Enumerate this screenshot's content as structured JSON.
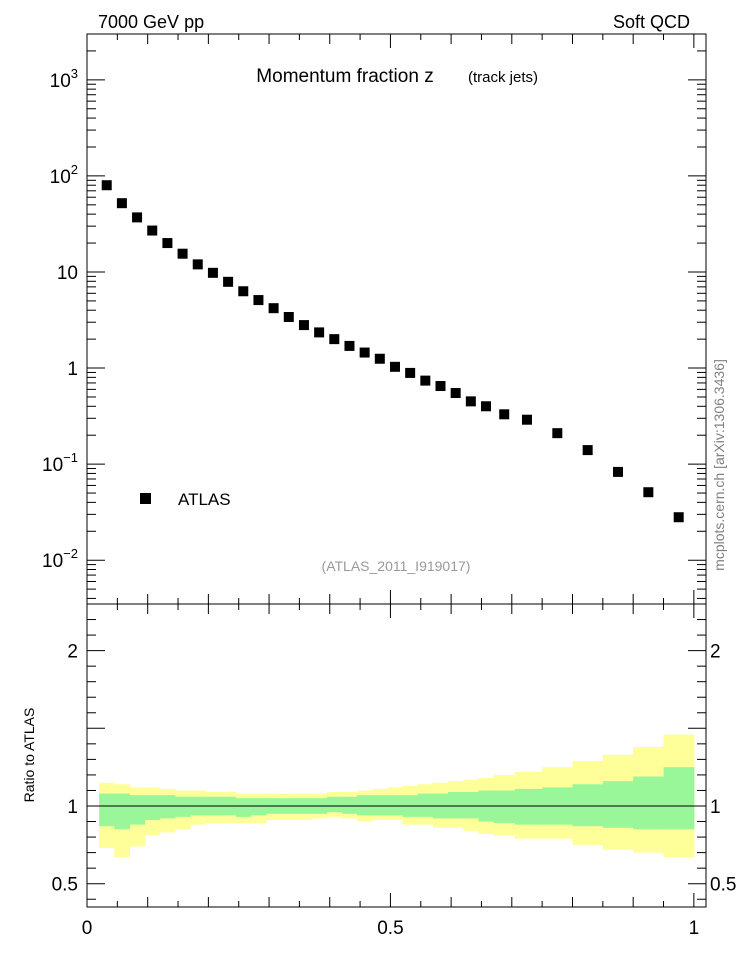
{
  "header": {
    "left": "7000 GeV pp",
    "right": "Soft QCD"
  },
  "side_label": "mcplots.cern.ch [arXiv:1306.3436]",
  "chart_data": [
    {
      "type": "scatter",
      "title": "Momentum fraction z",
      "subtitle": "(track jets)",
      "analysis_id": "(ATLAS_2011_I919017)",
      "y_scale": "log",
      "xlim": [
        0,
        1.02
      ],
      "ylim": [
        0.0035,
        3000
      ],
      "y_tick_labels": [
        {
          "value": 0.01,
          "base": "10",
          "exp": "−2"
        },
        {
          "value": 0.1,
          "base": "10",
          "exp": "−1"
        },
        {
          "value": 1,
          "base": "1",
          "exp": ""
        },
        {
          "value": 10,
          "base": "10",
          "exp": ""
        },
        {
          "value": 100,
          "base": "10",
          "exp": "2"
        },
        {
          "value": 1000,
          "base": "10",
          "exp": "3"
        }
      ],
      "legend": {
        "entry": "ATLAS",
        "placement": "lower-left"
      },
      "series": [
        {
          "name": "ATLAS",
          "color": "#000000",
          "marker": "square",
          "x": [
            0.0325,
            0.0575,
            0.0825,
            0.1075,
            0.1325,
            0.1575,
            0.1825,
            0.2075,
            0.2325,
            0.2575,
            0.2825,
            0.3075,
            0.3325,
            0.3575,
            0.3825,
            0.4075,
            0.4325,
            0.4575,
            0.4825,
            0.5075,
            0.5325,
            0.5575,
            0.5825,
            0.6075,
            0.6325,
            0.6575,
            0.6875,
            0.725,
            0.775,
            0.825,
            0.875,
            0.925,
            0.975
          ],
          "y": [
            80,
            52,
            37,
            27,
            20,
            15.5,
            12,
            9.8,
            7.9,
            6.3,
            5.1,
            4.2,
            3.4,
            2.8,
            2.35,
            2.0,
            1.7,
            1.45,
            1.25,
            1.03,
            0.89,
            0.74,
            0.65,
            0.55,
            0.45,
            0.4,
            0.33,
            0.29,
            0.21,
            0.14,
            0.083,
            0.051,
            0.028
          ]
        }
      ]
    },
    {
      "type": "area",
      "ylabel": "Ratio to ATLAS",
      "xlim": [
        0,
        1.02
      ],
      "ylim": [
        0.35,
        2.3
      ],
      "x_tick_labels": [
        {
          "value": 0,
          "label": "0"
        },
        {
          "value": 0.5,
          "label": "0.5"
        },
        {
          "value": 1,
          "label": "1"
        }
      ],
      "y_tick_labels": [
        {
          "value": 0.5,
          "label": "0.5"
        },
        {
          "value": 1,
          "label": "1"
        },
        {
          "value": 2,
          "label": "2"
        }
      ],
      "reference_line": 1,
      "colors": {
        "inner_band": "#99f799",
        "outer_band": "#ffff99"
      },
      "bin_edges": [
        0.02,
        0.045,
        0.07,
        0.095,
        0.12,
        0.145,
        0.17,
        0.195,
        0.22,
        0.245,
        0.27,
        0.295,
        0.32,
        0.345,
        0.37,
        0.395,
        0.42,
        0.445,
        0.47,
        0.495,
        0.52,
        0.545,
        0.57,
        0.595,
        0.62,
        0.645,
        0.67,
        0.705,
        0.75,
        0.8,
        0.85,
        0.9,
        0.95,
        1.0
      ],
      "inner_band_upper": [
        1.08,
        1.08,
        1.07,
        1.07,
        1.07,
        1.06,
        1.06,
        1.06,
        1.06,
        1.05,
        1.05,
        1.05,
        1.05,
        1.05,
        1.05,
        1.06,
        1.06,
        1.07,
        1.07,
        1.07,
        1.07,
        1.08,
        1.08,
        1.09,
        1.09,
        1.1,
        1.1,
        1.11,
        1.12,
        1.14,
        1.16,
        1.19,
        1.25
      ],
      "inner_band_lower": [
        0.87,
        0.85,
        0.88,
        0.91,
        0.92,
        0.93,
        0.94,
        0.94,
        0.94,
        0.93,
        0.94,
        0.95,
        0.95,
        0.95,
        0.95,
        0.96,
        0.95,
        0.94,
        0.94,
        0.94,
        0.93,
        0.93,
        0.92,
        0.92,
        0.92,
        0.9,
        0.89,
        0.88,
        0.88,
        0.87,
        0.86,
        0.85,
        0.85
      ],
      "outer_band_upper": [
        1.15,
        1.14,
        1.12,
        1.12,
        1.11,
        1.1,
        1.1,
        1.09,
        1.09,
        1.08,
        1.08,
        1.08,
        1.08,
        1.08,
        1.08,
        1.09,
        1.09,
        1.1,
        1.11,
        1.12,
        1.13,
        1.14,
        1.15,
        1.16,
        1.17,
        1.18,
        1.2,
        1.22,
        1.25,
        1.29,
        1.33,
        1.38,
        1.46
      ],
      "outer_band_lower": [
        0.73,
        0.67,
        0.74,
        0.81,
        0.83,
        0.85,
        0.88,
        0.89,
        0.89,
        0.89,
        0.89,
        0.91,
        0.91,
        0.91,
        0.92,
        0.93,
        0.92,
        0.9,
        0.91,
        0.91,
        0.88,
        0.88,
        0.86,
        0.86,
        0.84,
        0.82,
        0.81,
        0.79,
        0.79,
        0.75,
        0.72,
        0.7,
        0.67
      ]
    }
  ]
}
